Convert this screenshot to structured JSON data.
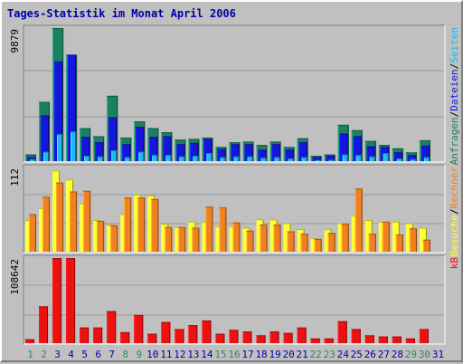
{
  "title": "Tages-Statistik im Monat April 2006",
  "colors": {
    "background": "#c0c0c0",
    "panel": "#c0c0c0",
    "grid": "#9a9a9a",
    "title": "#0000aa",
    "day_weekday": "#0000aa",
    "day_weekend": "#2e8b57",
    "anfragen": "#1a8060",
    "dateien": "#1515e0",
    "seiten": "#20b8f0",
    "besuche": "#ffff33",
    "rechner": "#f08020",
    "kb": "#ee1111"
  },
  "chart_data": [
    {
      "type": "bar",
      "name": "hits",
      "y_max_label": "9879",
      "ylim": [
        0,
        9879
      ],
      "categories": [
        "1",
        "2",
        "3",
        "4",
        "5",
        "6",
        "7",
        "8",
        "9",
        "10",
        "11",
        "12",
        "13",
        "14",
        "15",
        "16",
        "17",
        "18",
        "19",
        "20",
        "21",
        "22",
        "23",
        "24",
        "25",
        "26",
        "27",
        "28",
        "29",
        "30",
        "31"
      ],
      "series": [
        {
          "name": "Anfragen",
          "color": "#1a8060",
          "values": [
            500,
            4400,
            9879,
            7900,
            2450,
            1850,
            4850,
            1750,
            2950,
            2450,
            2150,
            1600,
            1650,
            1750,
            1050,
            1400,
            1450,
            1200,
            1450,
            1050,
            1700,
            400,
            500,
            2700,
            2300,
            1500,
            1200,
            950,
            650,
            1550,
            0
          ]
        },
        {
          "name": "Dateien",
          "color": "#1515e0",
          "values": [
            300,
            3400,
            7400,
            7900,
            1800,
            1400,
            3250,
            1250,
            2550,
            1800,
            1850,
            1250,
            1350,
            1650,
            900,
            1250,
            1250,
            850,
            1250,
            850,
            1400,
            300,
            400,
            2050,
            1850,
            1100,
            1050,
            650,
            450,
            1150,
            0
          ]
        },
        {
          "name": "Seiten",
          "color": "#20b8f0",
          "values": [
            150,
            700,
            2000,
            2200,
            400,
            350,
            800,
            300,
            700,
            450,
            450,
            350,
            400,
            600,
            300,
            350,
            350,
            250,
            300,
            200,
            300,
            100,
            100,
            500,
            450,
            350,
            600,
            200,
            150,
            300,
            0
          ]
        }
      ],
      "right_labels": [
        "Anfragen",
        "/",
        "Dateien",
        "/",
        "Seiten"
      ]
    },
    {
      "type": "bar",
      "name": "visits",
      "y_max_label": "112",
      "ylim": [
        0,
        112
      ],
      "categories": [
        "1",
        "2",
        "3",
        "4",
        "5",
        "6",
        "7",
        "8",
        "9",
        "10",
        "11",
        "12",
        "13",
        "14",
        "15",
        "16",
        "17",
        "18",
        "19",
        "20",
        "21",
        "22",
        "23",
        "24",
        "25",
        "26",
        "27",
        "28",
        "29",
        "30",
        "31"
      ],
      "series": [
        {
          "name": "Besuche",
          "color": "#ffff33",
          "values": [
            42,
            58,
            108,
            96,
            64,
            42,
            36,
            50,
            76,
            75,
            37,
            33,
            40,
            40,
            34,
            34,
            32,
            43,
            43,
            38,
            30,
            18,
            30,
            38,
            48,
            42,
            40,
            40,
            38,
            32,
            0
          ]
        },
        {
          "name": "Rechner",
          "color": "#f08020",
          "values": [
            50,
            73,
            92,
            80,
            81,
            41,
            35,
            72,
            72,
            70,
            33,
            33,
            32,
            60,
            59,
            39,
            28,
            36,
            36,
            27,
            24,
            17,
            25,
            37,
            84,
            24,
            40,
            23,
            31,
            16,
            0
          ]
        }
      ],
      "right_labels": [
        "Besuche",
        "/",
        "Rechner"
      ]
    },
    {
      "type": "bar",
      "name": "traffic",
      "y_max_label": "108642",
      "ylim": [
        0,
        108642
      ],
      "categories": [
        "1",
        "2",
        "3",
        "4",
        "5",
        "6",
        "7",
        "8",
        "9",
        "10",
        "11",
        "12",
        "13",
        "14",
        "15",
        "16",
        "17",
        "18",
        "19",
        "20",
        "21",
        "22",
        "23",
        "24",
        "25",
        "26",
        "27",
        "28",
        "29",
        "30",
        "31"
      ],
      "series": [
        {
          "name": "kB",
          "color": "#ee1111",
          "values": [
            5000,
            47000,
            108642,
            108642,
            20000,
            20000,
            41000,
            14000,
            36000,
            12000,
            27000,
            18000,
            23000,
            29000,
            12000,
            17000,
            15000,
            10000,
            15000,
            13000,
            20000,
            6000,
            6000,
            28000,
            18000,
            10000,
            8500,
            8500,
            6000,
            18000,
            0
          ]
        }
      ],
      "right_labels": [
        "kB"
      ]
    }
  ],
  "days": [
    {
      "label": "1",
      "weekend": true
    },
    {
      "label": "2",
      "weekend": true
    },
    {
      "label": "3",
      "weekend": false
    },
    {
      "label": "4",
      "weekend": false
    },
    {
      "label": "5",
      "weekend": false
    },
    {
      "label": "6",
      "weekend": false
    },
    {
      "label": "7",
      "weekend": false
    },
    {
      "label": "8",
      "weekend": true
    },
    {
      "label": "9",
      "weekend": true
    },
    {
      "label": "10",
      "weekend": false
    },
    {
      "label": "11",
      "weekend": false
    },
    {
      "label": "12",
      "weekend": false
    },
    {
      "label": "13",
      "weekend": false
    },
    {
      "label": "14",
      "weekend": false
    },
    {
      "label": "15",
      "weekend": true
    },
    {
      "label": "16",
      "weekend": true
    },
    {
      "label": "17",
      "weekend": false
    },
    {
      "label": "18",
      "weekend": false
    },
    {
      "label": "19",
      "weekend": false
    },
    {
      "label": "20",
      "weekend": false
    },
    {
      "label": "21",
      "weekend": false
    },
    {
      "label": "22",
      "weekend": true
    },
    {
      "label": "23",
      "weekend": true
    },
    {
      "label": "24",
      "weekend": false
    },
    {
      "label": "25",
      "weekend": false
    },
    {
      "label": "26",
      "weekend": false
    },
    {
      "label": "27",
      "weekend": false
    },
    {
      "label": "28",
      "weekend": false
    },
    {
      "label": "29",
      "weekend": true
    },
    {
      "label": "30",
      "weekend": true
    },
    {
      "label": "31",
      "weekend": false
    }
  ]
}
